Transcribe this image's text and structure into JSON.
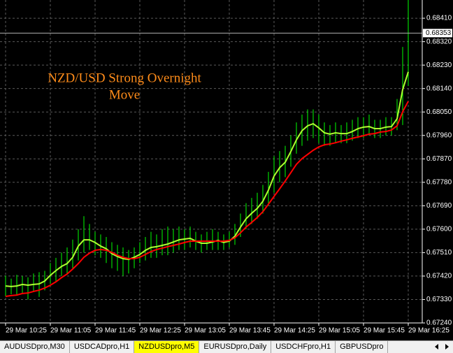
{
  "chart_data": {
    "type": "ohlc",
    "annotation": [
      "NZD/USD Strong Overnight",
      "Move"
    ],
    "categories": [
      "29 Mar 10:25",
      null,
      null,
      null,
      null,
      null,
      null,
      null,
      "29 Mar 11:05",
      null,
      null,
      null,
      null,
      null,
      null,
      null,
      "29 Mar 11:45",
      null,
      null,
      null,
      null,
      null,
      null,
      null,
      "29 Mar 12:25",
      null,
      null,
      null,
      null,
      null,
      null,
      null,
      "29 Mar 13:05",
      null,
      null,
      null,
      null,
      null,
      null,
      null,
      "29 Mar 13:45",
      null,
      null,
      null,
      null,
      null,
      null,
      null,
      "29 Mar 14:25",
      null,
      null,
      null,
      null,
      null,
      null,
      null,
      "29 Mar 15:05",
      null,
      null,
      null,
      null,
      null,
      null,
      null,
      "29 Mar 15:45",
      null,
      null,
      null,
      null,
      null,
      null,
      null,
      "29 Mar 16:25"
    ],
    "bars": {
      "color": "#00ff00",
      "high": [
        0.67422,
        0.6741,
        0.67425,
        0.6742,
        0.67415,
        0.6743,
        0.67435,
        0.6744,
        0.6747,
        0.6749,
        0.6751,
        0.6753,
        0.6756,
        0.676,
        0.6765,
        0.6762,
        0.6759,
        0.6758,
        0.6757,
        0.6755,
        0.6754,
        0.6753,
        0.6752,
        0.6753,
        0.6755,
        0.6757,
        0.6759,
        0.6758,
        0.676,
        0.6761,
        0.676,
        0.6761,
        0.676,
        0.6761,
        0.6759,
        0.6758,
        0.6759,
        0.676,
        0.6759,
        0.6758,
        0.6759,
        0.6762,
        0.6766,
        0.677,
        0.6772,
        0.6774,
        0.6777,
        0.6782,
        0.6788,
        0.679,
        0.6792,
        0.6796,
        0.6801,
        0.6804,
        0.6806,
        0.6806,
        0.6804,
        0.6801,
        0.68,
        0.6801,
        0.68,
        0.6801,
        0.6802,
        0.6803,
        0.6803,
        0.6804,
        0.6802,
        0.6802,
        0.6803,
        0.6803,
        0.681,
        0.683,
        0.6848
      ],
      "low": [
        0.67342,
        0.6735,
        0.67345,
        0.67355,
        0.6733,
        0.6736,
        0.6734,
        0.67365,
        0.6739,
        0.674,
        0.6742,
        0.6743,
        0.6745,
        0.6748,
        0.6751,
        0.6752,
        0.675,
        0.6749,
        0.6747,
        0.6745,
        0.6744,
        0.6742,
        0.6743,
        0.6745,
        0.6747,
        0.6748,
        0.6749,
        0.6749,
        0.675,
        0.675,
        0.6751,
        0.6752,
        0.6752,
        0.6753,
        0.6752,
        0.6751,
        0.6752,
        0.6752,
        0.6752,
        0.6752,
        0.6753,
        0.6754,
        0.6757,
        0.676,
        0.6762,
        0.6764,
        0.6766,
        0.6769,
        0.6774,
        0.6778,
        0.678,
        0.6784,
        0.6789,
        0.6792,
        0.6794,
        0.6795,
        0.6793,
        0.6792,
        0.6792,
        0.6793,
        0.6793,
        0.6793,
        0.6794,
        0.6795,
        0.6795,
        0.6796,
        0.6795,
        0.6795,
        0.6796,
        0.6796,
        0.6798,
        0.68,
        0.6815
      ]
    },
    "series": [
      {
        "color": "#adff2f",
        "values": [
          0.67382,
          0.6738,
          0.67382,
          0.67388,
          0.67385,
          0.67388,
          0.6739,
          0.67401,
          0.67423,
          0.67441,
          0.67457,
          0.67468,
          0.67492,
          0.67535,
          0.67559,
          0.67559,
          0.67549,
          0.67535,
          0.67525,
          0.67506,
          0.67495,
          0.67487,
          0.67484,
          0.67492,
          0.67503,
          0.67519,
          0.6753,
          0.67533,
          0.67538,
          0.67543,
          0.67551,
          0.67559,
          0.67562,
          0.67565,
          0.67554,
          0.67546,
          0.67546,
          0.67551,
          0.67557,
          0.67549,
          0.67554,
          0.67573,
          0.67608,
          0.6764,
          0.67661,
          0.6768,
          0.67707,
          0.6775,
          0.67804,
          0.67836,
          0.67857,
          0.67898,
          0.67943,
          0.67978,
          0.67997,
          0.68005,
          0.67989,
          0.6797,
          0.67965,
          0.6797,
          0.67967,
          0.67967,
          0.67975,
          0.67986,
          0.67992,
          0.67994,
          0.67986,
          0.67986,
          0.67992,
          0.67994,
          0.68024,
          0.68136,
          0.68204
        ]
      },
      {
        "color": "#ff0000",
        "values": [
          0.67342,
          0.67345,
          0.67347,
          0.67353,
          0.67355,
          0.67361,
          0.67366,
          0.67374,
          0.67385,
          0.67398,
          0.67414,
          0.67428,
          0.67447,
          0.67468,
          0.67492,
          0.67508,
          0.67519,
          0.67522,
          0.67519,
          0.67511,
          0.675,
          0.67492,
          0.67487,
          0.67487,
          0.67492,
          0.67503,
          0.67514,
          0.67522,
          0.67527,
          0.67533,
          0.67538,
          0.67543,
          0.67549,
          0.67554,
          0.67554,
          0.67554,
          0.67554,
          0.67554,
          0.67554,
          0.67554,
          0.67557,
          0.67567,
          0.67586,
          0.67608,
          0.67626,
          0.67645,
          0.67667,
          0.67696,
          0.67726,
          0.67755,
          0.67785,
          0.67817,
          0.67849,
          0.67871,
          0.67887,
          0.67903,
          0.67916,
          0.67924,
          0.67927,
          0.67932,
          0.67938,
          0.67943,
          0.67949,
          0.67954,
          0.67959,
          0.67965,
          0.67967,
          0.67973,
          0.67975,
          0.67981,
          0.67997,
          0.68051,
          0.68091
        ]
      }
    ],
    "current_price": 0.68353,
    "ylim": [
      0.6724,
      0.6848
    ],
    "yticks": [
      {
        "value": 0.6724,
        "label": "0.67240"
      },
      {
        "value": 0.6733,
        "label": "0.67330"
      },
      {
        "value": 0.6742,
        "label": "0.67420"
      },
      {
        "value": 0.6751,
        "label": "0.67510"
      },
      {
        "value": 0.676,
        "label": "0.67600"
      },
      {
        "value": 0.6769,
        "label": "0.67690"
      },
      {
        "value": 0.6778,
        "label": "0.67780"
      },
      {
        "value": 0.6787,
        "label": "0.67870"
      },
      {
        "value": 0.6796,
        "label": "0.67960"
      },
      {
        "value": 0.6805,
        "label": "0.68050"
      },
      {
        "value": 0.6814,
        "label": "0.68140"
      },
      {
        "value": 0.6823,
        "label": "0.68230"
      },
      {
        "value": 0.6832,
        "label": "0.68320"
      },
      {
        "value": 0.6841,
        "label": "0.68410"
      }
    ],
    "grid": true
  },
  "tabs": [
    "AUDUSDpro,M30",
    "USDCADpro,H1",
    "NZDUSDpro,M5",
    "EURUSDpro,Daily",
    "USDCHFpro,H1",
    "GBPUSDpro"
  ],
  "active_tab": 2
}
